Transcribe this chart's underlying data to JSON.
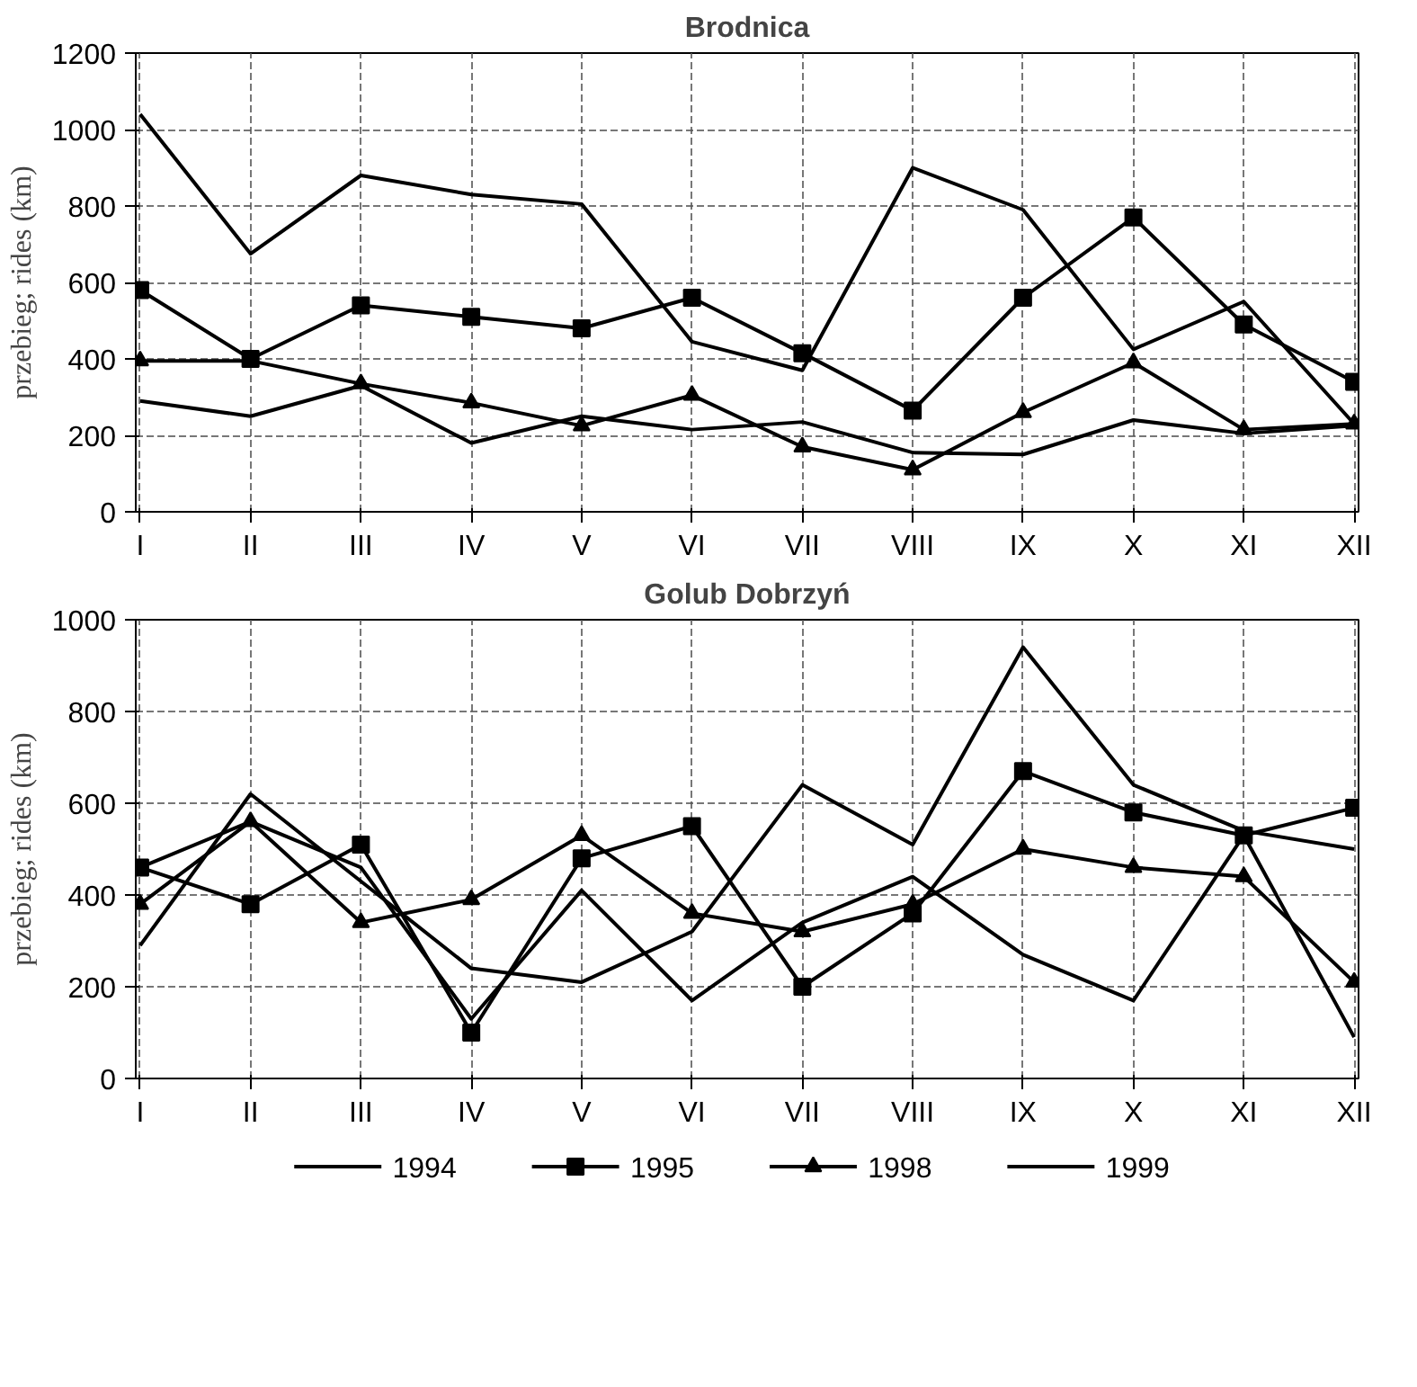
{
  "chart_data": [
    {
      "type": "line",
      "title": "Brodnica",
      "ylabel": "przebieg; rides (km)",
      "categories": [
        "I",
        "II",
        "III",
        "IV",
        "V",
        "VI",
        "VII",
        "VIII",
        "IX",
        "X",
        "XI",
        "XII"
      ],
      "ylim": [
        0,
        1200
      ],
      "yticks": [
        0,
        200,
        400,
        600,
        800,
        1000,
        1200
      ],
      "grid": true,
      "series": [
        {
          "color": "#000000",
          "marker": "none",
          "values": [
            290,
            250,
            330,
            180,
            250,
            215,
            235,
            155,
            150,
            240,
            205,
            225
          ]
        },
        {
          "color": "#000000",
          "marker": "square",
          "values": [
            580,
            400,
            540,
            510,
            480,
            560,
            415,
            265,
            560,
            770,
            490,
            340
          ]
        },
        {
          "color": "#000000",
          "marker": "triangle",
          "values": [
            395,
            395,
            335,
            285,
            225,
            305,
            170,
            110,
            260,
            390,
            215,
            230
          ]
        },
        {
          "color": "#000000",
          "marker": "none",
          "values": [
            1040,
            675,
            880,
            830,
            805,
            445,
            370,
            900,
            790,
            425,
            550,
            230
          ]
        }
      ]
    },
    {
      "type": "line",
      "title": "Golub Dobrzyń",
      "ylabel": "przebieg; rides (km)",
      "categories": [
        "I",
        "II",
        "III",
        "IV",
        "V",
        "VI",
        "VII",
        "VIII",
        "IX",
        "X",
        "XI",
        "XII"
      ],
      "ylim": [
        0,
        1000
      ],
      "yticks": [
        0,
        200,
        400,
        600,
        800,
        1000
      ],
      "grid": true,
      "legend": "bottom",
      "series": [
        {
          "name": "1994",
          "color": "#000000",
          "marker": "none",
          "values": [
            460,
            560,
            460,
            130,
            410,
            170,
            340,
            440,
            270,
            170,
            530,
            90
          ]
        },
        {
          "name": "1995",
          "color": "#000000",
          "marker": "square",
          "values": [
            460,
            380,
            510,
            100,
            480,
            550,
            200,
            360,
            670,
            580,
            530,
            590
          ]
        },
        {
          "name": "1998",
          "color": "#000000",
          "marker": "triangle",
          "values": [
            380,
            560,
            340,
            390,
            530,
            360,
            320,
            380,
            500,
            460,
            440,
            210
          ]
        },
        {
          "name": "1999",
          "color": "#000000",
          "marker": "none",
          "values": [
            290,
            620,
            430,
            240,
            210,
            320,
            640,
            510,
            940,
            640,
            540,
            500
          ]
        }
      ]
    }
  ]
}
